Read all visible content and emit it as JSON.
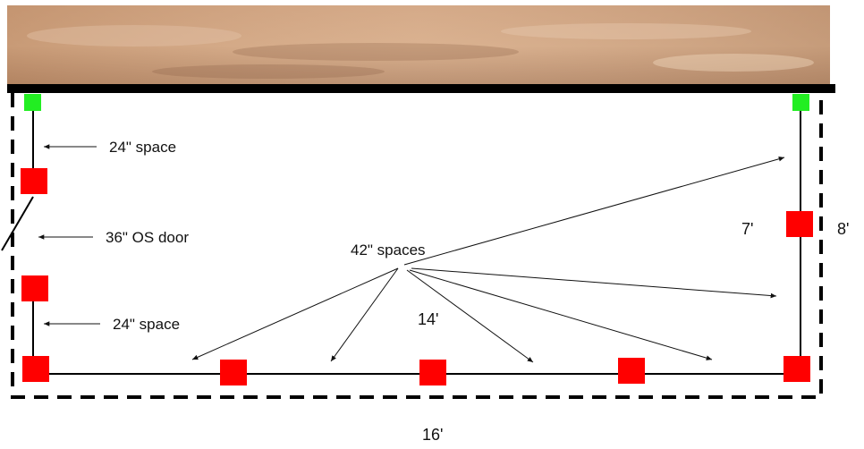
{
  "diagram": {
    "labels": {
      "space_top": "24\" space",
      "door": "36\" OS door",
      "space_bottom": "24\" space",
      "spaces_42": "42\" spaces",
      "inner_14": "14'",
      "inner_7": "7'",
      "outer_8": "8'",
      "outer_16": "16'"
    },
    "colors": {
      "post": "#ff0000",
      "corner_post": "#22ee22",
      "wall": "#000000",
      "sky_top": "#c99a76",
      "sky_bottom": "#a87a5c"
    }
  }
}
